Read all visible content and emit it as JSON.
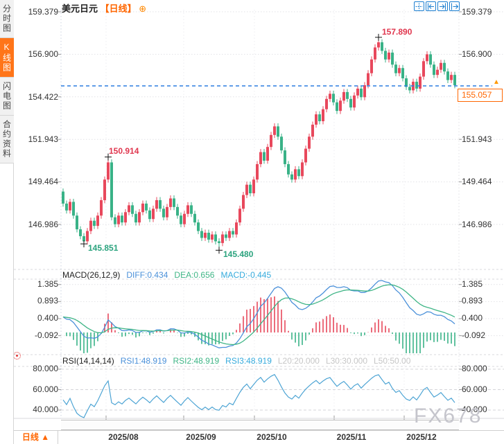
{
  "header": {
    "symbol": "美元日元",
    "period_tag": "【日线】",
    "settings_icon": "⊕"
  },
  "toolbar": {
    "icons": [
      "pan",
      "snap-left",
      "snap-right",
      "shift-right"
    ]
  },
  "sidebar": {
    "tabs": [
      {
        "label": "分时图",
        "active": false
      },
      {
        "label": "K线图",
        "active": true
      },
      {
        "label": "闪电图",
        "active": false
      },
      {
        "label": "合约资料",
        "active": false
      }
    ]
  },
  "main_chart": {
    "left_axis": [
      "159.379",
      "156.900",
      "154.422",
      "151.943",
      "149.464",
      "146.986"
    ],
    "right_axis": [
      "159.379",
      "156.900",
      "151.943",
      "149.464",
      "146.986"
    ],
    "price_tag": "155.057",
    "price_arrow": "▲",
    "annotations": {
      "high1": "150.914",
      "high2": "157.890",
      "low1": "145.851",
      "low2": "145.480"
    }
  },
  "macd_panel": {
    "title": "MACD(26,12,9)",
    "diff_label": "DIFF:0.434",
    "dea_label": "DEA:0.656",
    "macd_label": "MACD:-0.445",
    "axis": [
      "1.385",
      "0.893",
      "0.400",
      "-0.092"
    ]
  },
  "rsi_panel": {
    "title": "RSI(14,14,14)",
    "rsi1_label": "RSI1:48.919",
    "rsi2_label": "RSI2:48.919",
    "rsi3_label": "RSI3:48.919",
    "l20_label": "L20:20.000",
    "l30_label": "L30:30.000",
    "l50_label": "L50:50.00",
    "axis": [
      "80.000",
      "60.000",
      "40.000"
    ]
  },
  "bottom": {
    "period_label": "日线",
    "up_arrow": "▲",
    "months": [
      "2025/08",
      "2025/09",
      "2025/10",
      "2025/11",
      "2025/12"
    ]
  },
  "watermark": "FX678",
  "colors": {
    "up": "#e8485c",
    "down": "#39b287",
    "accent": "#ff6600",
    "diff_line": "#4a90d9",
    "dea_line": "#3fb586",
    "rsi_line": "#4da4d4",
    "price_line": "#2b7de0",
    "grid": "#e2e2e6"
  },
  "chart_data": {
    "type": "candlestick",
    "title": "USD/JPY daily (美元日元 日线)",
    "x_labels": [
      "2025/08",
      "2025/09",
      "2025/10",
      "2025/11",
      "2025/12"
    ],
    "price_axis": {
      "ticks": [
        159.379,
        156.9,
        154.422,
        151.943,
        149.464,
        146.986
      ]
    },
    "macd_axis": {
      "ticks": [
        1.385,
        0.893,
        0.4,
        -0.092
      ]
    },
    "rsi_axis": {
      "ticks": [
        80,
        60,
        40
      ]
    },
    "current_price": 155.057,
    "open_first": 148.9,
    "wick_pad": 0.18,
    "closes": [
      148.2,
      147.8,
      148.3,
      147.5,
      146.7,
      146.3,
      146.0,
      146.6,
      147.2,
      146.9,
      147.5,
      148.4,
      149.6,
      150.6,
      147.4,
      147.0,
      147.5,
      147.1,
      147.7,
      148.1,
      147.6,
      147.1,
      147.7,
      148.2,
      147.8,
      147.3,
      147.9,
      148.4,
      147.9,
      147.4,
      148.0,
      148.5,
      148.0,
      147.5,
      147.0,
      147.6,
      148.1,
      147.6,
      147.1,
      146.6,
      146.2,
      146.5,
      146.1,
      146.4,
      146.0,
      145.9,
      146.4,
      146.2,
      146.6,
      146.4,
      147.1,
      147.9,
      148.7,
      149.3,
      148.8,
      149.6,
      150.5,
      151.2,
      150.7,
      151.5,
      152.2,
      152.7,
      152.1,
      151.3,
      150.5,
      149.9,
      149.6,
      150.2,
      149.8,
      150.6,
      151.4,
      152.1,
      152.8,
      153.4,
      153.0,
      153.7,
      154.3,
      154.6,
      154.1,
      153.6,
      154.2,
      154.7,
      154.3,
      153.8,
      154.5,
      154.9,
      154.4,
      155.1,
      155.8,
      156.6,
      157.3,
      157.6,
      157.1,
      156.6,
      157.0,
      156.3,
      155.8,
      156.1,
      155.5,
      155.0,
      154.8,
      155.3,
      154.9,
      155.6,
      156.5,
      156.9,
      156.3,
      155.7,
      156.0,
      156.4,
      155.9,
      155.4,
      155.7,
      155.1
    ],
    "high_annotations": [
      {
        "index": 13,
        "price": 150.914
      },
      {
        "index": 91,
        "price": 157.89
      }
    ],
    "low_annotations": [
      {
        "index": 6,
        "price": 145.851
      },
      {
        "index": 45,
        "price": 145.48
      }
    ],
    "macd": {
      "fast": 12,
      "slow": 26,
      "signal": 9,
      "diff": 0.434,
      "dea": 0.656,
      "hist": -0.445
    },
    "rsi": {
      "periods": [
        14,
        14,
        14
      ],
      "values": [
        48.919,
        48.919,
        48.919
      ],
      "levels": [
        20,
        30,
        50
      ]
    }
  }
}
